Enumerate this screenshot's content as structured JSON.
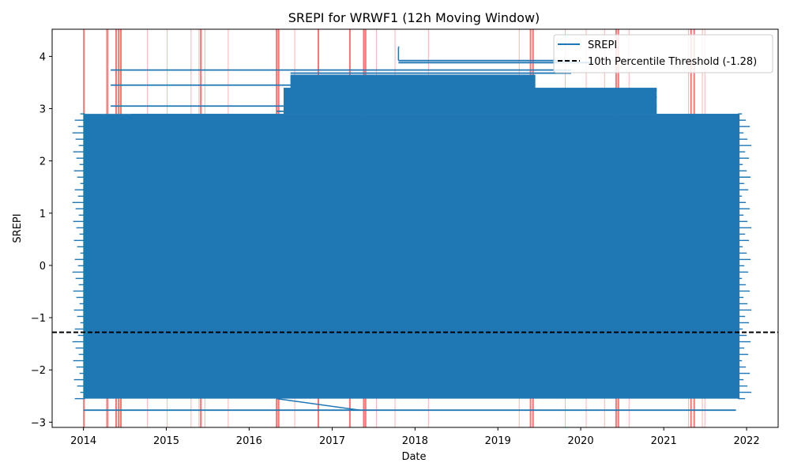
{
  "chart_data": {
    "type": "line",
    "title": "SREPI for WRWF1 (12h Moving Window)",
    "xlabel": "Date",
    "ylabel": "SREPI",
    "xlim": [
      "2013-08-16",
      "2022-05-20"
    ],
    "ylim": [
      -3.1,
      4.52
    ],
    "x_ticks": [
      "2014-01-01",
      "2015-01-01",
      "2016-01-01",
      "2017-01-01",
      "2018-01-01",
      "2019-01-01",
      "2020-01-01",
      "2021-01-01",
      "2022-01-01"
    ],
    "x_tick_labels": [
      "2014",
      "2015",
      "2016",
      "2017",
      "2018",
      "2019",
      "2020",
      "2021",
      "2022"
    ],
    "y_ticks": [
      -3,
      -2,
      -1,
      0,
      1,
      2,
      3,
      4
    ],
    "y_tick_labels": [
      "−3",
      "−2",
      "−1",
      "0",
      "1",
      "2",
      "3",
      "4"
    ],
    "grid": false,
    "legend_position": "top-right",
    "series": [
      {
        "name": "SREPI",
        "color": "#1f77b4",
        "dense_band": {
          "x_start": "2014-01-01",
          "x_end": "2021-12-01",
          "y_min": -2.55,
          "y_max": 2.9
        },
        "horizontal_runs": [
          {
            "y": 4.18,
            "x_start": "2017-10-20",
            "x_end": "2017-10-20"
          },
          {
            "y": 3.92,
            "x_start": "2017-10-20",
            "x_end": "2019-11-20"
          },
          {
            "y": 3.88,
            "x_start": "2017-10-20",
            "x_end": "2020-03-01"
          },
          {
            "y": 3.74,
            "x_start": "2014-05-01",
            "x_end": "2019-11-20"
          },
          {
            "y": 3.68,
            "x_start": "2016-07-01",
            "x_end": "2019-11-20"
          },
          {
            "y": 3.55,
            "x_start": "2016-07-01",
            "x_end": "2019-06-15"
          },
          {
            "y": 3.45,
            "x_start": "2014-05-01",
            "x_end": "2019-06-15"
          },
          {
            "y": 3.35,
            "x_start": "2016-06-01",
            "x_end": "2020-12-01"
          },
          {
            "y": 3.22,
            "x_start": "2016-06-01",
            "x_end": "2020-12-01"
          },
          {
            "y": 3.05,
            "x_start": "2014-05-01",
            "x_end": "2020-12-01"
          },
          {
            "y": 2.95,
            "x_start": "2016-05-01",
            "x_end": "2018-02-15"
          },
          {
            "y": 2.8,
            "x_start": "2014-05-01",
            "x_end": "2021-11-30"
          },
          {
            "y": 2.65,
            "x_start": "2014-02-01",
            "x_end": "2021-11-30"
          },
          {
            "y": -2.77,
            "x_start": "2014-01-01",
            "x_end": "2021-11-15"
          }
        ],
        "spike": {
          "x": "2017-10-20",
          "y_top": 4.18
        },
        "diagonal": {
          "x1": "2016-05-01",
          "y1": -2.55,
          "x2": "2017-05-01",
          "y2": -2.77
        }
      },
      {
        "name": "10th Percentile Threshold (-1.28)",
        "color": "#000000",
        "style": "dashed",
        "y": -1.28
      }
    ],
    "drought_markers": [
      {
        "x": "2014-01-03",
        "strong": true
      },
      {
        "x": "2014-04-15",
        "strong": true
      },
      {
        "x": "2014-04-20",
        "strong": false
      },
      {
        "x": "2014-05-25",
        "strong": true
      },
      {
        "x": "2014-06-05",
        "strong": true
      },
      {
        "x": "2014-06-15",
        "strong": true
      },
      {
        "x": "2014-10-10",
        "strong": false
      },
      {
        "x": "2015-01-05",
        "strong": false
      },
      {
        "x": "2015-04-20",
        "strong": false
      },
      {
        "x": "2015-05-25",
        "strong": false
      },
      {
        "x": "2015-06-02",
        "strong": true
      },
      {
        "x": "2015-06-20",
        "strong": false
      },
      {
        "x": "2015-10-01",
        "strong": false
      },
      {
        "x": "2016-05-01",
        "strong": true
      },
      {
        "x": "2016-05-10",
        "strong": true
      },
      {
        "x": "2016-07-20",
        "strong": false
      },
      {
        "x": "2016-11-01",
        "strong": true
      },
      {
        "x": "2017-03-20",
        "strong": true
      },
      {
        "x": "2017-05-20",
        "strong": true
      },
      {
        "x": "2017-05-28",
        "strong": true
      },
      {
        "x": "2017-07-15",
        "strong": false
      },
      {
        "x": "2017-10-05",
        "strong": false
      },
      {
        "x": "2018-03-01",
        "strong": false
      },
      {
        "x": "2019-04-05",
        "strong": false
      },
      {
        "x": "2019-05-25",
        "strong": true
      },
      {
        "x": "2019-06-05",
        "strong": true
      },
      {
        "x": "2019-10-25",
        "strong": false
      },
      {
        "x": "2020-01-25",
        "strong": false
      },
      {
        "x": "2020-04-15",
        "strong": false
      },
      {
        "x": "2020-06-05",
        "strong": true
      },
      {
        "x": "2020-06-15",
        "strong": true
      },
      {
        "x": "2020-08-01",
        "strong": false
      },
      {
        "x": "2021-04-20",
        "strong": false
      },
      {
        "x": "2021-05-01",
        "strong": true
      },
      {
        "x": "2021-05-15",
        "strong": true
      },
      {
        "x": "2021-06-20",
        "strong": false
      },
      {
        "x": "2021-07-01",
        "strong": false
      }
    ],
    "marker_color": "#ff0000"
  }
}
